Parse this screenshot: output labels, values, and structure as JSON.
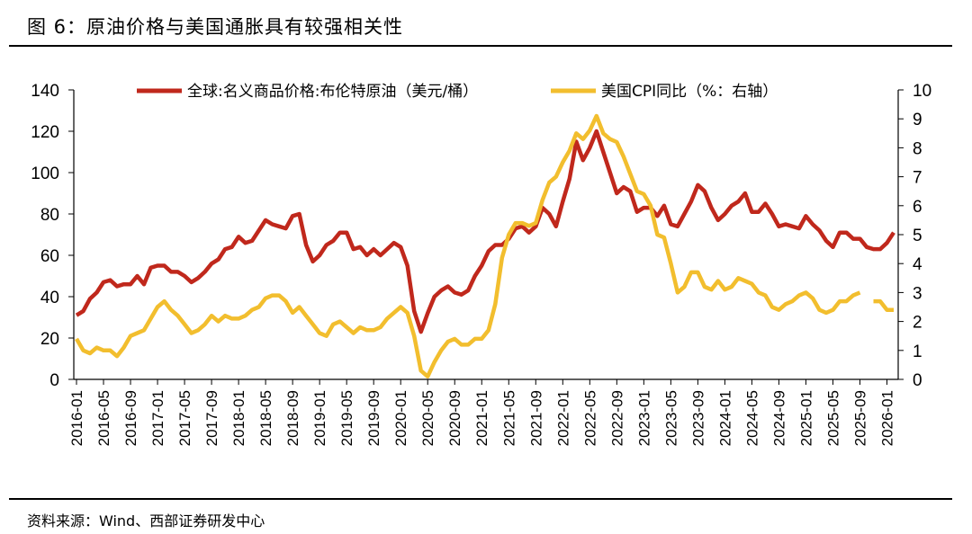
{
  "figure": {
    "title": "图 6：原油价格与美国通胀具有较强相关性",
    "source": "资料来源：Wind、西部证券研发中心"
  },
  "chart_data": {
    "type": "line",
    "title": "",
    "x_start": "2016-01",
    "x_end": "2026-02",
    "x_tick_labels": [
      "2016-01",
      "2016-05",
      "2016-09",
      "2017-01",
      "2017-05",
      "2017-09",
      "2018-01",
      "2018-05",
      "2018-09",
      "2019-01",
      "2019-05",
      "2019-09",
      "2020-01",
      "2020-05",
      "2020-09",
      "2021-01",
      "2021-05",
      "2021-09",
      "2022-01",
      "2022-05",
      "2022-09",
      "2023-01",
      "2023-05",
      "2023-09",
      "2024-01",
      "2024-05",
      "2024-09",
      "2025-01",
      "2025-05",
      "2025-09",
      "2026-01"
    ],
    "y_left": {
      "min": 0,
      "max": 140,
      "ticks": [
        0,
        20,
        40,
        60,
        80,
        100,
        120,
        140
      ]
    },
    "y_right": {
      "min": 0,
      "max": 10,
      "ticks": [
        0,
        1,
        2,
        3,
        4,
        5,
        6,
        7,
        8,
        9,
        10
      ]
    },
    "grid": false,
    "legend_position": "top",
    "series": [
      {
        "name": "全球:名义商品价格:布伦特原油（美元/桶）",
        "axis": "left",
        "color": "#C0281C",
        "values": [
          31,
          33,
          39,
          42,
          47,
          48,
          45,
          46,
          46,
          50,
          46,
          54,
          55,
          55,
          52,
          52,
          50,
          47,
          49,
          52,
          56,
          58,
          63,
          64,
          69,
          66,
          67,
          72,
          77,
          75,
          74,
          73,
          79,
          80,
          65,
          57,
          60,
          65,
          67,
          71,
          71,
          63,
          64,
          60,
          63,
          60,
          63,
          66,
          64,
          55,
          33,
          23,
          32,
          40,
          43,
          45,
          42,
          41,
          43,
          50,
          55,
          62,
          65,
          65,
          68,
          73,
          74,
          71,
          74,
          83,
          80,
          74,
          86,
          97,
          115,
          106,
          112,
          120,
          110,
          100,
          90,
          93,
          91,
          81,
          83,
          83,
          79,
          84,
          75,
          74,
          80,
          86,
          94,
          91,
          83,
          77,
          80,
          84,
          86,
          90,
          81,
          81,
          85,
          80,
          74,
          75,
          74,
          73,
          79,
          75,
          72,
          67,
          64,
          71,
          71,
          68,
          68,
          64,
          63,
          63,
          66,
          71
        ],
        "gap_indices": []
      },
      {
        "name": "美国CPI同比（%：右轴）",
        "axis": "right",
        "color": "#F2BE2E",
        "values": [
          1.4,
          1.0,
          0.9,
          1.1,
          1.0,
          1.0,
          0.8,
          1.1,
          1.5,
          1.6,
          1.7,
          2.1,
          2.5,
          2.7,
          2.4,
          2.2,
          1.9,
          1.6,
          1.7,
          1.9,
          2.2,
          2.0,
          2.2,
          2.1,
          2.1,
          2.2,
          2.4,
          2.5,
          2.8,
          2.9,
          2.9,
          2.7,
          2.3,
          2.5,
          2.2,
          1.9,
          1.6,
          1.5,
          1.9,
          2.0,
          1.8,
          1.6,
          1.8,
          1.7,
          1.7,
          1.8,
          2.1,
          2.3,
          2.5,
          2.3,
          1.5,
          0.3,
          0.1,
          0.6,
          1.0,
          1.3,
          1.4,
          1.2,
          1.2,
          1.4,
          1.4,
          1.7,
          2.6,
          4.2,
          5.0,
          5.4,
          5.4,
          5.3,
          5.4,
          6.2,
          6.8,
          7.0,
          7.5,
          7.9,
          8.5,
          8.3,
          8.6,
          9.1,
          8.5,
          8.3,
          8.2,
          7.7,
          7.1,
          6.5,
          6.4,
          6.0,
          5.0,
          4.9,
          4.0,
          3.0,
          3.2,
          3.7,
          3.7,
          3.2,
          3.1,
          3.4,
          3.1,
          3.2,
          3.5,
          3.4,
          3.3,
          3.0,
          2.9,
          2.5,
          2.4,
          2.6,
          2.7,
          2.9,
          3.0,
          2.8,
          2.4,
          2.3,
          2.4,
          2.7,
          2.7,
          2.9,
          3.0,
          null,
          2.7,
          2.7,
          2.4,
          2.4
        ],
        "gap_indices": [
          117
        ]
      }
    ]
  }
}
